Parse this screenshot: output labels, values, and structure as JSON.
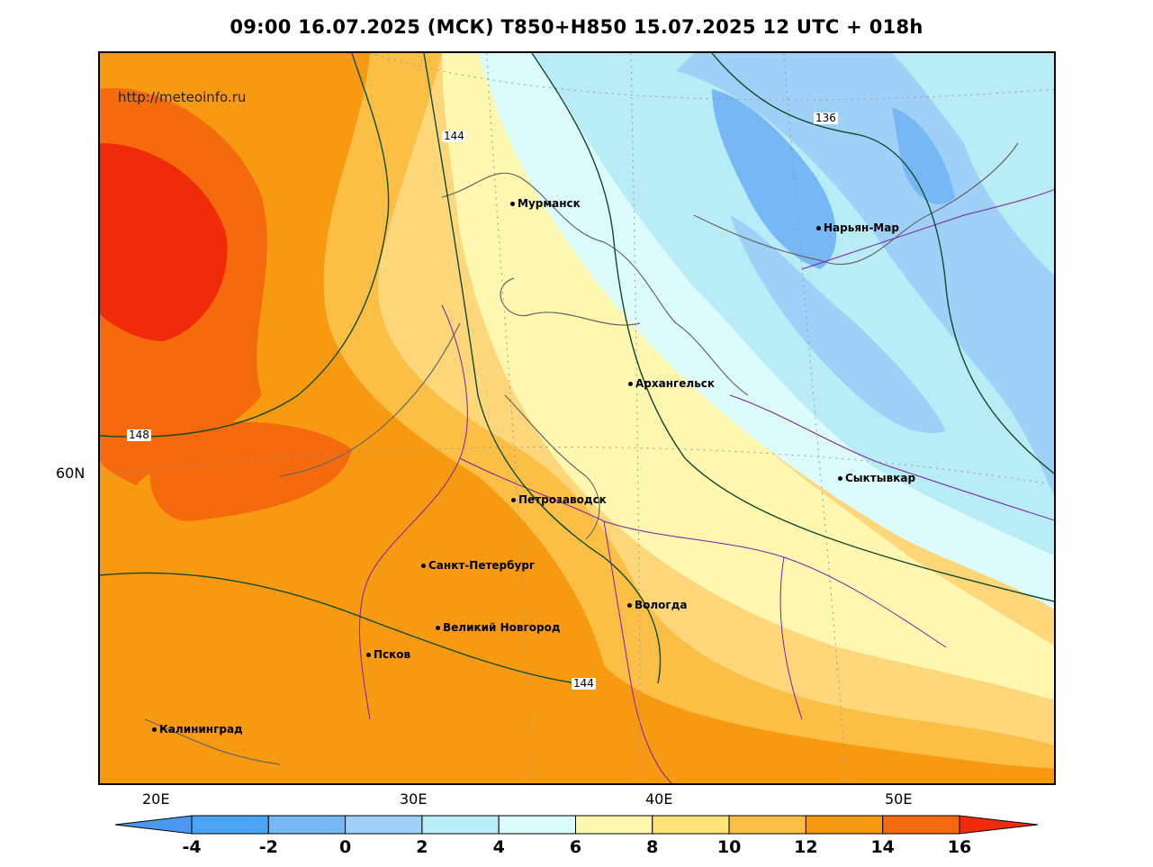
{
  "title": "09:00 16.07.2025 (МСК) T850+H850 15.07.2025 12 UTC + 018h",
  "url": "http://meteoinfo.ru",
  "cities": [
    {
      "name": "Мурманск"
    },
    {
      "name": "Нарьян-Мар"
    },
    {
      "name": "Архангельск"
    },
    {
      "name": "Сыктывкар"
    },
    {
      "name": "Петрозаводск"
    },
    {
      "name": "Санкт-Петербург"
    },
    {
      "name": "Вологда"
    },
    {
      "name": "Великий Новгород"
    },
    {
      "name": "Псков"
    },
    {
      "name": "Калининград"
    }
  ],
  "contour_labels": [
    "144",
    "136",
    "148",
    "144"
  ],
  "lon_labels": [
    "20E",
    "30E",
    "40E",
    "50E"
  ],
  "lat_label": "60N",
  "colorbar": {
    "ticks": [
      "-4",
      "-2",
      "0",
      "2",
      "4",
      "6",
      "8",
      "10",
      "12",
      "14",
      "16"
    ],
    "colors": [
      "#4a98f0",
      "#4aa3f4",
      "#75b8f5",
      "#9fd0f8",
      "#b8ecf7",
      "#dcfcfc",
      "#fef7b0",
      "#fde37a",
      "#fbbf45",
      "#f79a12",
      "#f56a0c",
      "#f02b0a"
    ]
  }
}
